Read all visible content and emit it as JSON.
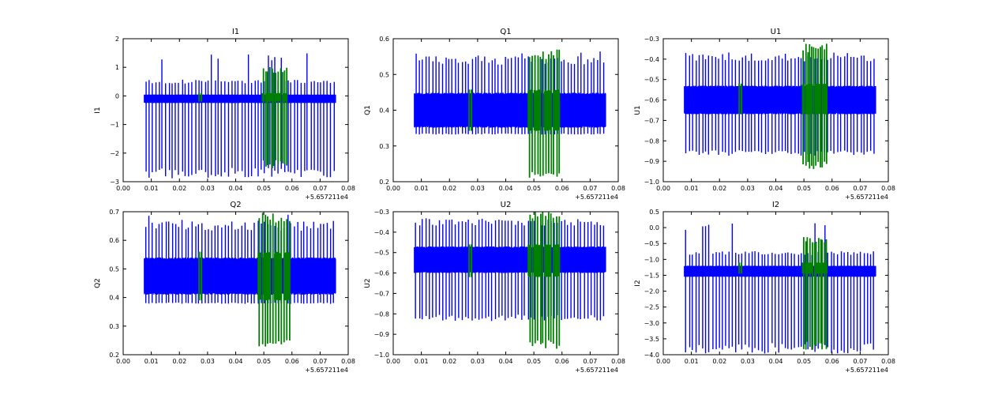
{
  "colors": {
    "background": "#ffffff",
    "series_blue": "#0000ff",
    "series_green": "#008000"
  },
  "chart_data": [
    {
      "type": "line",
      "title": "I1",
      "ylabel": "I1",
      "xlabel": "",
      "x_offset_label": "+5.657211e4",
      "xlim": [
        0.0,
        0.08
      ],
      "ylim": [
        -3,
        2
      ],
      "xticks": [
        "0.00",
        "0.01",
        "0.02",
        "0.03",
        "0.04",
        "0.05",
        "0.06",
        "0.07",
        "0.08"
      ],
      "yticks": [
        "−3",
        "−2",
        "−1",
        "0",
        "1",
        "2"
      ],
      "series": [
        {
          "color": "#0000ff",
          "x_range": [
            0.0075,
            0.0755
          ],
          "band": [
            -0.25,
            0.05
          ],
          "spike_high": 0.5,
          "spike_low": -2.7,
          "peak_high": 1.5
        },
        {
          "color": "#008000",
          "x_range": [
            0.0495,
            0.0585
          ],
          "band": [
            -0.2,
            0.1
          ],
          "spike_high": 0.9,
          "spike_low": -2.4
        }
      ]
    },
    {
      "type": "line",
      "title": "Q1",
      "ylabel": "Q1",
      "xlabel": "",
      "x_offset_label": "+5.657211e4",
      "xlim": [
        0.0,
        0.08
      ],
      "ylim": [
        0.15,
        0.6
      ],
      "xticks": [
        "0.00",
        "0.01",
        "0.02",
        "0.03",
        "0.04",
        "0.05",
        "0.06",
        "0.07",
        "0.08"
      ],
      "yticks": [
        "0.2",
        "0.3",
        "0.4",
        "0.5",
        "0.6"
      ],
      "series": [
        {
          "color": "#0000ff",
          "x_range": [
            0.0075,
            0.0755
          ],
          "band": [
            0.32,
            0.43
          ],
          "spike_high": 0.53,
          "spike_low": 0.3,
          "peak_high": 0.56
        },
        {
          "color": "#008000",
          "x_range": [
            0.048,
            0.0595
          ],
          "band": [
            0.31,
            0.44
          ],
          "spike_high": 0.55,
          "spike_low": 0.17
        }
      ]
    },
    {
      "type": "line",
      "title": "U1",
      "ylabel": "U1",
      "xlabel": "",
      "x_offset_label": "+5.657211e4",
      "xlim": [
        0.0,
        0.08
      ],
      "ylim": [
        -1.0,
        -0.3
      ],
      "xticks": [
        "0.00",
        "0.01",
        "0.02",
        "0.03",
        "0.04",
        "0.05",
        "0.06",
        "0.07",
        "0.08"
      ],
      "yticks": [
        "−1.0",
        "−0.9",
        "−0.8",
        "−0.7",
        "−0.6",
        "−0.5",
        "−0.4",
        "−0.3"
      ],
      "series": [
        {
          "color": "#0000ff",
          "x_range": [
            0.0075,
            0.0755
          ],
          "band": [
            -0.67,
            -0.53
          ],
          "spike_high": -0.39,
          "spike_low": -0.86,
          "peak_high": -0.36
        },
        {
          "color": "#008000",
          "x_range": [
            0.0495,
            0.0585
          ],
          "band": [
            -0.67,
            -0.52
          ],
          "spike_high": -0.35,
          "spike_low": -0.92
        }
      ]
    },
    {
      "type": "line",
      "title": "Q2",
      "ylabel": "Q2",
      "xlabel": "",
      "x_offset_label": "+5.657211e4",
      "xlim": [
        0.0,
        0.08
      ],
      "ylim": [
        0.2,
        0.7
      ],
      "xticks": [
        "0.00",
        "0.01",
        "0.02",
        "0.03",
        "0.04",
        "0.05",
        "0.06",
        "0.07",
        "0.08"
      ],
      "yticks": [
        "0.2",
        "0.3",
        "0.4",
        "0.5",
        "0.6",
        "0.7"
      ],
      "series": [
        {
          "color": "#0000ff",
          "x_range": [
            0.0075,
            0.0755
          ],
          "band": [
            0.41,
            0.54
          ],
          "spike_high": 0.65,
          "spike_low": 0.38,
          "peak_high": 0.69
        },
        {
          "color": "#008000",
          "x_range": [
            0.048,
            0.0595
          ],
          "band": [
            0.39,
            0.56
          ],
          "spike_high": 0.68,
          "spike_low": 0.24
        }
      ]
    },
    {
      "type": "line",
      "title": "U2",
      "ylabel": "U2",
      "xlabel": "",
      "x_offset_label": "+5.657211e4",
      "xlim": [
        0.0,
        0.08
      ],
      "ylim": [
        -1.0,
        -0.3
      ],
      "xticks": [
        "0.00",
        "0.01",
        "0.02",
        "0.03",
        "0.04",
        "0.05",
        "0.06",
        "0.07",
        "0.08"
      ],
      "yticks": [
        "−1.0",
        "−0.9",
        "−0.8",
        "−0.7",
        "−0.6",
        "−0.5",
        "−0.4",
        "−0.3"
      ],
      "series": [
        {
          "color": "#0000ff",
          "x_range": [
            0.0075,
            0.0755
          ],
          "band": [
            -0.6,
            -0.47
          ],
          "spike_high": -0.35,
          "spike_low": -0.82,
          "peak_high": -0.34
        },
        {
          "color": "#008000",
          "x_range": [
            0.048,
            0.0595
          ],
          "band": [
            -0.62,
            -0.46
          ],
          "spike_high": -0.32,
          "spike_low": -0.95
        }
      ]
    },
    {
      "type": "line",
      "title": "I2",
      "ylabel": "I2",
      "xlabel": "",
      "x_offset_label": "+5.657211e4",
      "xlim": [
        0.0,
        0.08
      ],
      "ylim": [
        -4.0,
        0.5
      ],
      "xticks": [
        "0.00",
        "0.01",
        "0.02",
        "0.03",
        "0.04",
        "0.05",
        "0.06",
        "0.07",
        "0.08"
      ],
      "yticks": [
        "−4.0",
        "−3.5",
        "−3.0",
        "−2.5",
        "−2.0",
        "−1.5",
        "−1.0",
        "−0.5",
        "0.0",
        "0.5"
      ],
      "series": [
        {
          "color": "#0000ff",
          "x_range": [
            0.0075,
            0.0755
          ],
          "band": [
            -1.55,
            -1.2
          ],
          "spike_high": -0.8,
          "spike_low": -3.8,
          "peak_high": 0.2
        },
        {
          "color": "#008000",
          "x_range": [
            0.0495,
            0.0585
          ],
          "band": [
            -1.45,
            -1.1
          ],
          "spike_high": -0.4,
          "spike_low": -3.7
        }
      ]
    }
  ]
}
